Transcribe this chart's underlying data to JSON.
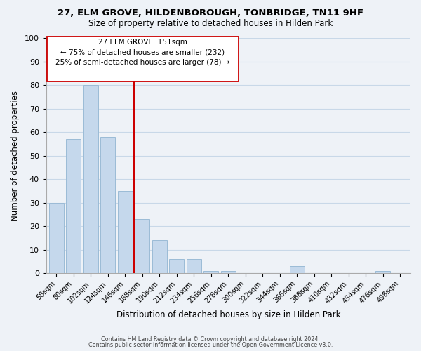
{
  "title1": "27, ELM GROVE, HILDENBOROUGH, TONBRIDGE, TN11 9HF",
  "title2": "Size of property relative to detached houses in Hilden Park",
  "xlabel": "Distribution of detached houses by size in Hilden Park",
  "ylabel": "Number of detached properties",
  "bar_labels": [
    "58sqm",
    "80sqm",
    "102sqm",
    "124sqm",
    "146sqm",
    "168sqm",
    "190sqm",
    "212sqm",
    "234sqm",
    "256sqm",
    "278sqm",
    "300sqm",
    "322sqm",
    "344sqm",
    "366sqm",
    "388sqm",
    "410sqm",
    "432sqm",
    "454sqm",
    "476sqm",
    "498sqm"
  ],
  "bar_values": [
    30,
    57,
    80,
    58,
    35,
    23,
    14,
    6,
    6,
    1,
    1,
    0,
    0,
    0,
    3,
    0,
    0,
    0,
    0,
    1,
    0
  ],
  "bar_color": "#c5d8ec",
  "bar_edge_color": "#9bbbd6",
  "vline_x": 4.5,
  "vline_color": "#cc0000",
  "ann_line1": "27 ELM GROVE: 151sqm",
  "ann_line2": "← 75% of detached houses are smaller (232)",
  "ann_line3": "25% of semi-detached houses are larger (78) →",
  "ylim": [
    0,
    100
  ],
  "yticks": [
    0,
    10,
    20,
    30,
    40,
    50,
    60,
    70,
    80,
    90,
    100
  ],
  "grid_color": "#c8d8e8",
  "background_color": "#eef2f7",
  "footer1": "Contains HM Land Registry data © Crown copyright and database right 2024.",
  "footer2": "Contains public sector information licensed under the Open Government Licence v3.0."
}
